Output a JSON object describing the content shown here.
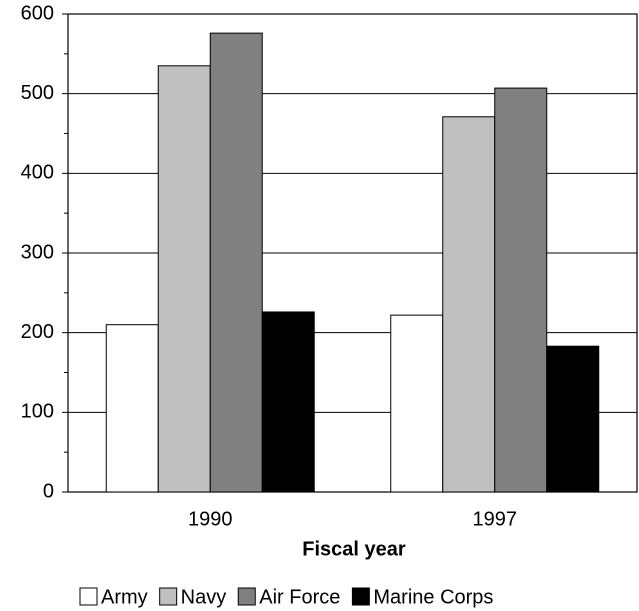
{
  "chart_data": {
    "type": "bar",
    "x_label": "Fiscal year",
    "categories": [
      "1990",
      "1997"
    ],
    "series": [
      {
        "name": "Army",
        "color": "#ffffff",
        "values": [
          210,
          222
        ]
      },
      {
        "name": "Navy",
        "color": "#c0c0c0",
        "values": [
          535,
          471
        ]
      },
      {
        "name": "Air Force",
        "color": "#808080",
        "values": [
          576,
          507
        ]
      },
      {
        "name": "Marine Corps",
        "color": "#000000",
        "values": [
          226,
          183
        ]
      }
    ],
    "ylim": [
      0,
      600
    ],
    "yticks": [
      0,
      100,
      200,
      300,
      400,
      500,
      600
    ],
    "yminorticks": [
      50,
      150,
      250,
      350,
      450,
      550
    ],
    "grid": true,
    "legend": "bottom"
  }
}
